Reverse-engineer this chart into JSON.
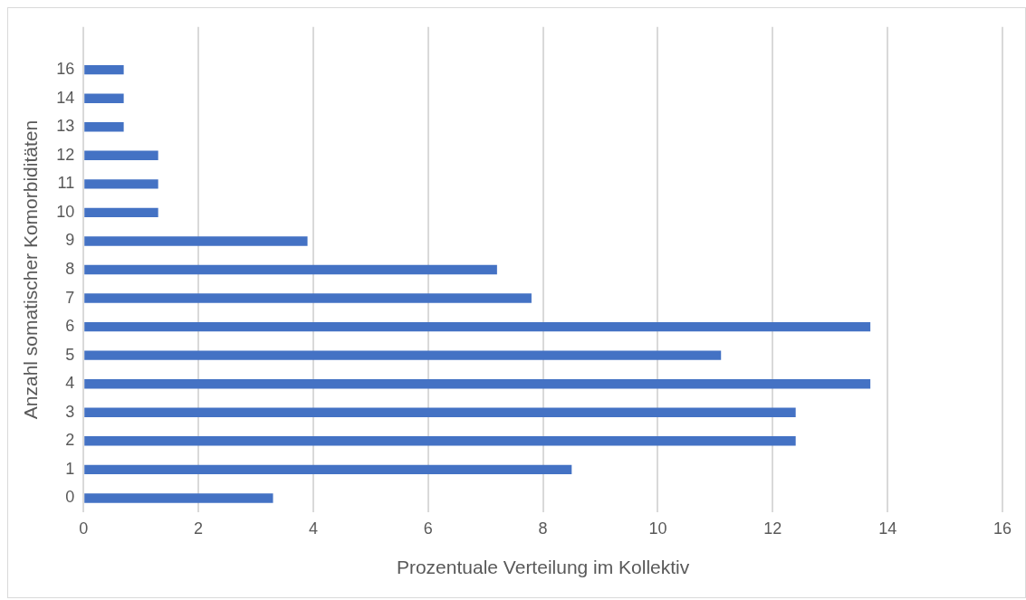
{
  "chart_data": {
    "type": "bar",
    "orientation": "horizontal",
    "xlabel": "Prozentuale Verteilung im Kollektiv",
    "ylabel": "Anzahl somatischer Komorbiditäten",
    "categories": [
      null,
      "16",
      "14",
      "13",
      "12",
      "11",
      "10",
      "9",
      "8",
      "7",
      "6",
      "5",
      "4",
      "3",
      "2",
      "1",
      "0"
    ],
    "values": [
      null,
      0.7,
      0.7,
      0.7,
      1.3,
      1.3,
      1.3,
      3.9,
      7.2,
      7.8,
      13.7,
      11.1,
      13.7,
      12.4,
      12.4,
      8.5,
      3.3
    ],
    "color": "#4472c4",
    "xlim": [
      0,
      16
    ],
    "xticks": [
      0,
      2,
      4,
      6,
      8,
      10,
      12,
      14,
      16
    ],
    "grid": "x",
    "legend": false
  }
}
